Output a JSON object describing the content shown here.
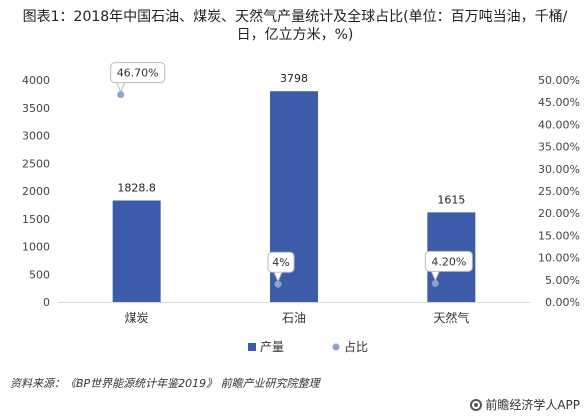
{
  "title": "图表1：2018年中国石油、煤炭、天然气产量统计及全球占比(单位：百万吨当油，千桶/日，亿立方米，%)",
  "footer": {
    "source": "资料来源：《BP世界能源统计年鉴2019》 前瞻产业研究院整理",
    "brand": "前瞻经济学人APP"
  },
  "colors": {
    "bar": "#3c5ba8",
    "point": "#8fa3cf",
    "grid": "#e6e6e6"
  },
  "chart_data": {
    "type": "bar",
    "categories": [
      "煤炭",
      "石油",
      "天然气"
    ],
    "series": [
      {
        "name": "产量",
        "type": "bar",
        "axis": "left",
        "values": [
          1828.8,
          3798,
          1615
        ],
        "labels": [
          "1828.8",
          "3798",
          "1615"
        ]
      },
      {
        "name": "占比",
        "type": "scatter",
        "axis": "right",
        "values": [
          46.7,
          4,
          4.2
        ],
        "labels": [
          "46.70%",
          "4%",
          "4.20%"
        ]
      }
    ],
    "y_left": {
      "ylim": [
        0,
        4000
      ],
      "ticks": [
        "0",
        "500",
        "1000",
        "1500",
        "2000",
        "2500",
        "3000",
        "3500",
        "4000"
      ]
    },
    "y_right": {
      "ylim": [
        0,
        50
      ],
      "ticks": [
        "0.00%",
        "5.00%",
        "10.00%",
        "15.00%",
        "20.00%",
        "25.00%",
        "30.00%",
        "35.00%",
        "40.00%",
        "45.00%",
        "50.00%"
      ]
    },
    "legend": {
      "placement": "bottom",
      "items": [
        "产量",
        "占比"
      ]
    },
    "grid": false
  }
}
